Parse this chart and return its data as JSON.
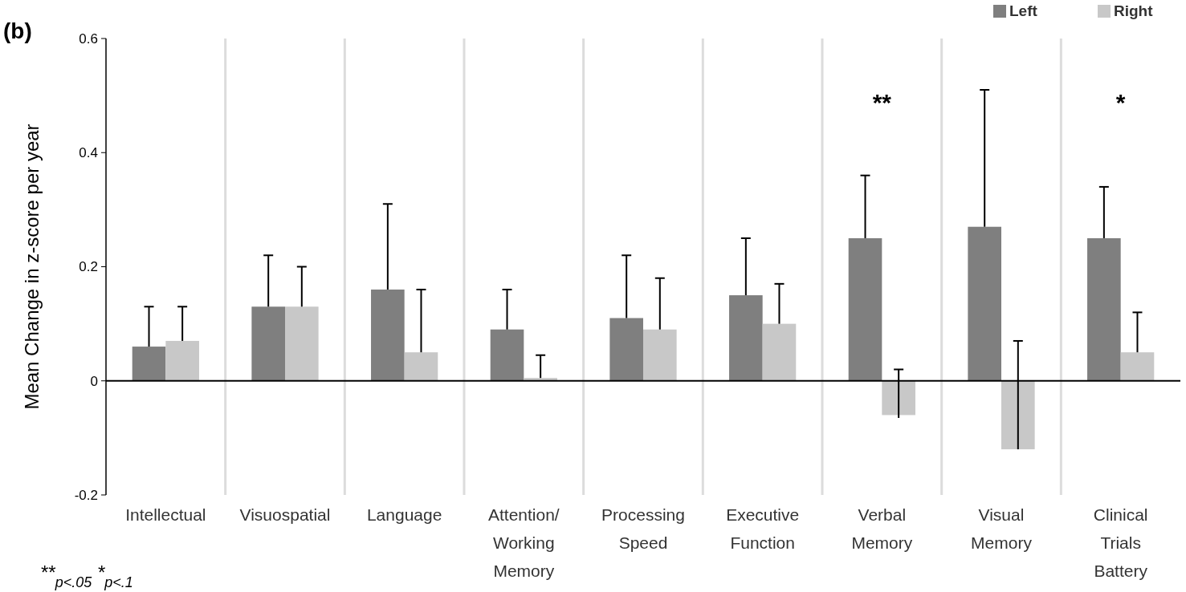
{
  "chart_data": {
    "type": "bar",
    "ylabel": "Mean Change in z-score per year",
    "categories": [
      "Intellectual",
      "Visuospatial",
      "Language",
      "Attention/ Working Memory",
      "Processing Speed",
      "Executive Function",
      "Verbal Memory",
      "Visual Memory",
      "Clinical Trials Battery"
    ],
    "series": [
      {
        "name": "Left",
        "color": "#7f7f7f",
        "values": [
          0.06,
          0.13,
          0.16,
          0.09,
          0.11,
          0.15,
          0.25,
          0.27,
          0.25
        ],
        "errors": [
          [
            0.06,
            0.13
          ],
          [
            0.13,
            0.22
          ],
          [
            0.16,
            0.31
          ],
          [
            0.09,
            0.16
          ],
          [
            0.11,
            0.22
          ],
          [
            0.15,
            0.25
          ],
          [
            0.25,
            0.36
          ],
          [
            0.27,
            0.51
          ],
          [
            0.25,
            0.34
          ]
        ]
      },
      {
        "name": "Right",
        "color": "#c8c8c8",
        "values": [
          0.07,
          0.13,
          0.05,
          0.005,
          0.09,
          0.1,
          -0.06,
          -0.12,
          0.05
        ],
        "errors": [
          [
            0.07,
            0.13
          ],
          [
            0.13,
            0.2
          ],
          [
            0.05,
            0.16
          ],
          [
            0.005,
            0.045
          ],
          [
            0.09,
            0.18
          ],
          [
            0.1,
            0.17
          ],
          [
            -0.065,
            0.02
          ],
          [
            -0.12,
            0.07
          ],
          [
            0.05,
            0.12
          ]
        ]
      }
    ],
    "ylim": [
      -0.2,
      0.6
    ],
    "yticks": [
      -0.2,
      0,
      0.2,
      0.4,
      0.6
    ],
    "grid": "x",
    "legend": "top right",
    "annotations": [
      "(b)",
      "**",
      "*",
      "**$_{p<.05}$   *$_{p<.1}$"
    ]
  }
}
